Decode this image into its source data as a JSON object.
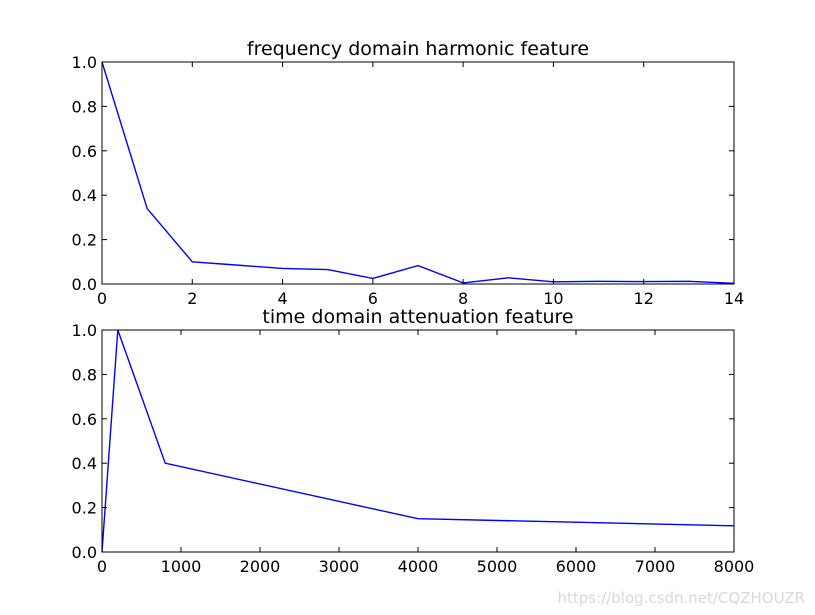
{
  "chart_data": [
    {
      "type": "line",
      "title": "frequency domain harmonic feature",
      "xlabel": "",
      "ylabel": "",
      "xlim": [
        0,
        14
      ],
      "ylim": [
        0,
        1.0
      ],
      "x_ticks": [
        0,
        2,
        4,
        6,
        8,
        10,
        12,
        14
      ],
      "y_ticks": [
        0.0,
        0.2,
        0.4,
        0.6,
        0.8,
        1.0
      ],
      "x_tick_labels": [
        "0",
        "2",
        "4",
        "6",
        "8",
        "10",
        "12",
        "14"
      ],
      "y_tick_labels": [
        "0.0",
        "0.2",
        "0.4",
        "0.6",
        "0.8",
        "1.0"
      ],
      "grid": false,
      "series": [
        {
          "color": "#0000ff",
          "x": [
            0,
            1,
            2,
            3,
            4,
            5,
            6,
            7,
            8,
            9,
            10,
            11,
            12,
            13,
            14
          ],
          "y": [
            1.0,
            0.34,
            0.1,
            0.085,
            0.07,
            0.065,
            0.025,
            0.083,
            0.005,
            0.028,
            0.01,
            0.012,
            0.011,
            0.012,
            0.003
          ]
        }
      ]
    },
    {
      "type": "line",
      "title": "time domain attenuation feature",
      "xlabel": "",
      "ylabel": "",
      "xlim": [
        0,
        8000
      ],
      "ylim": [
        0,
        1.0
      ],
      "x_ticks": [
        0,
        1000,
        2000,
        3000,
        4000,
        5000,
        6000,
        7000,
        8000
      ],
      "y_ticks": [
        0.0,
        0.2,
        0.4,
        0.6,
        0.8,
        1.0
      ],
      "x_tick_labels": [
        "0",
        "1000",
        "2000",
        "3000",
        "4000",
        "5000",
        "6000",
        "7000",
        "8000"
      ],
      "y_tick_labels": [
        "0.0",
        "0.2",
        "0.4",
        "0.6",
        "0.8",
        "1.0"
      ],
      "grid": false,
      "series": [
        {
          "color": "#0000ff",
          "x": [
            0,
            200,
            800,
            4000,
            8000
          ],
          "y": [
            0.0,
            1.0,
            0.4,
            0.15,
            0.118
          ]
        }
      ]
    }
  ],
  "watermark": "https://blog.csdn.net/CQZHOUZR"
}
